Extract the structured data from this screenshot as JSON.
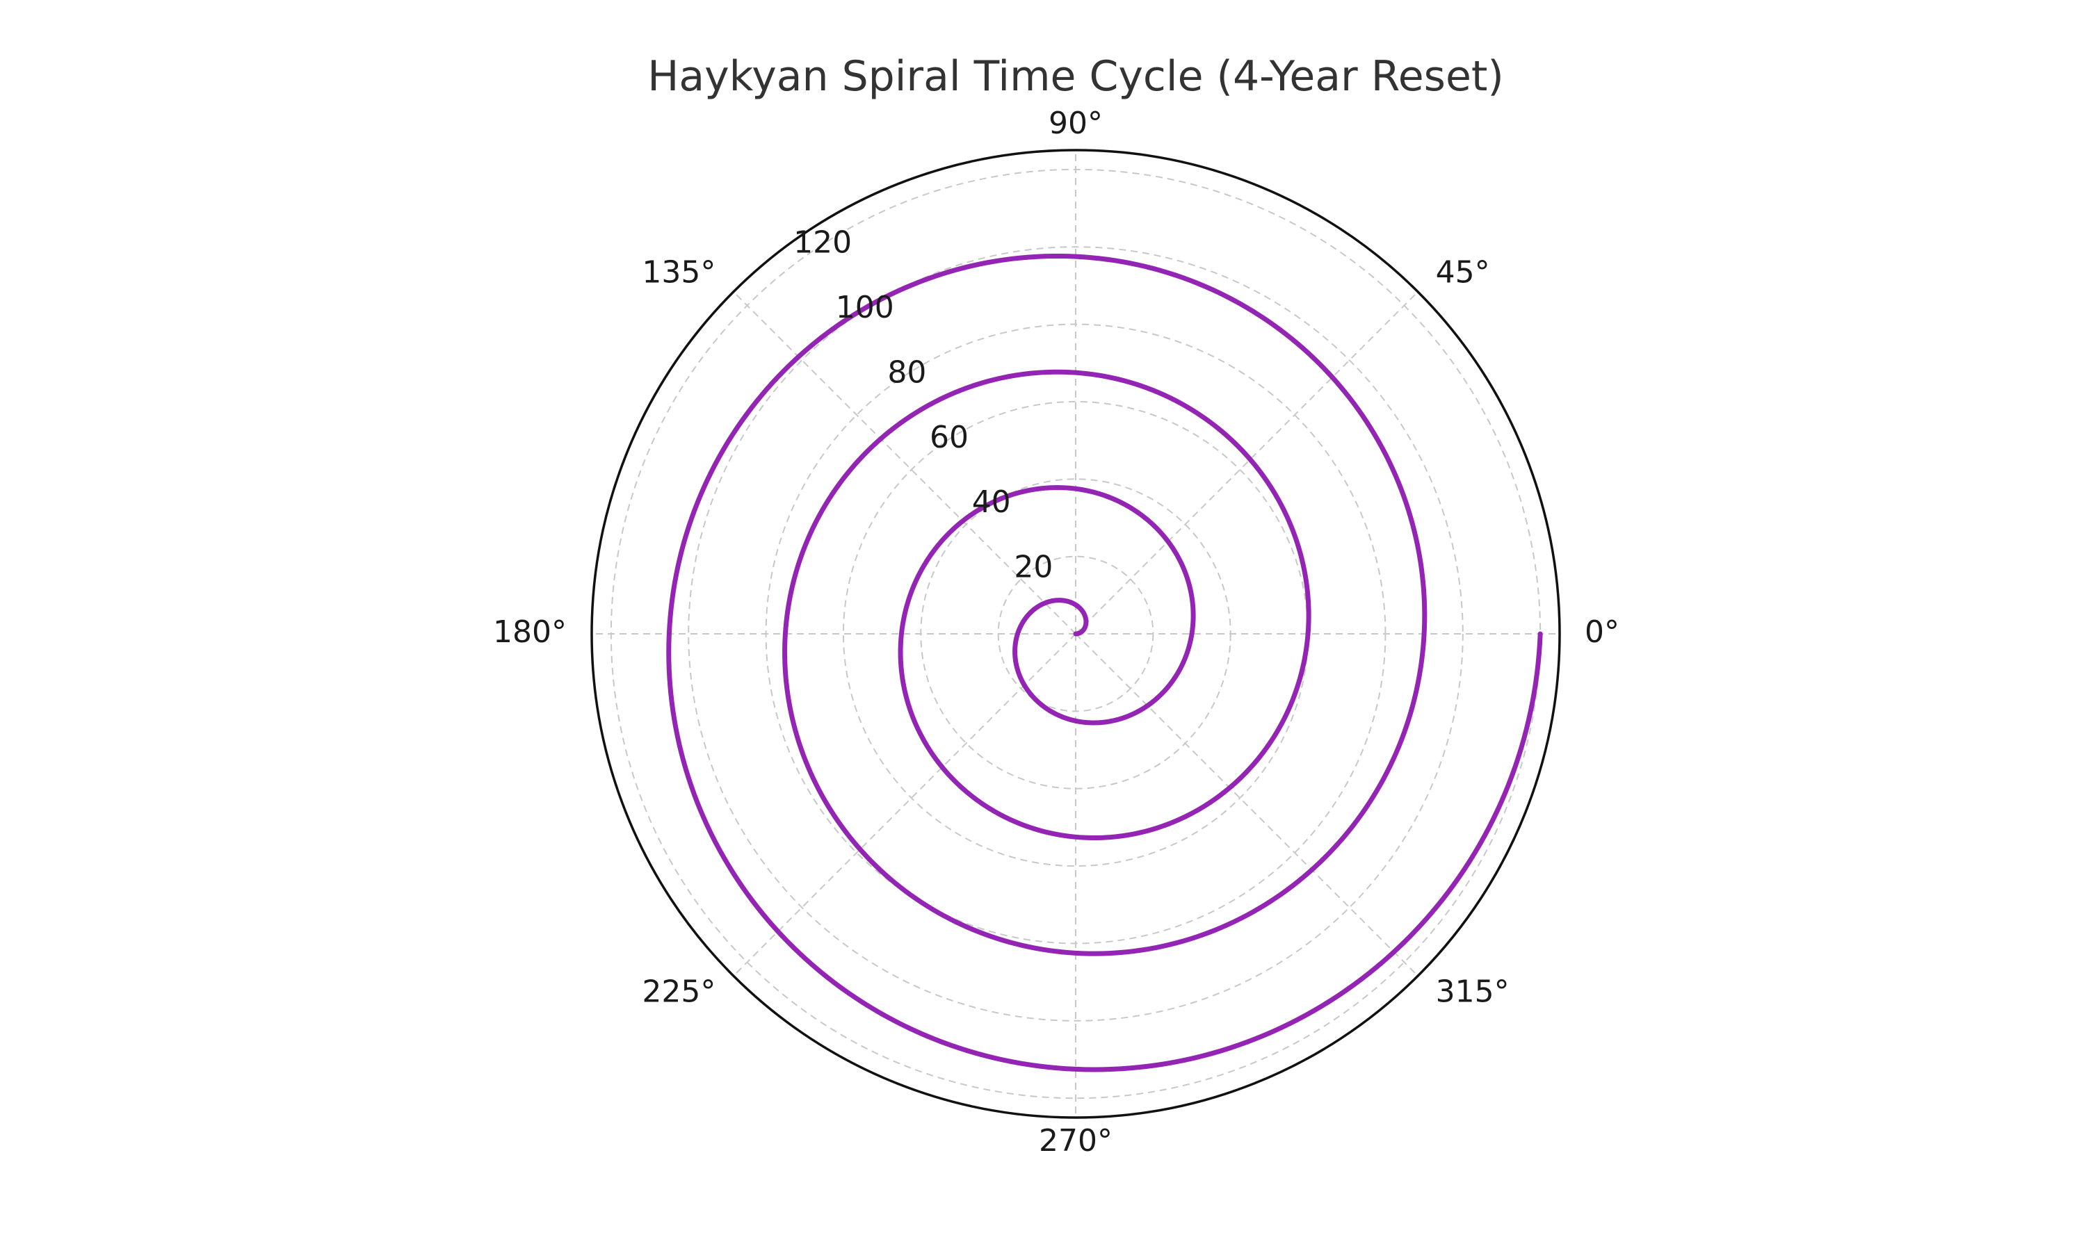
{
  "chart_data": {
    "type": "line",
    "projection": "polar",
    "title": "Haykyan Spiral Time Cycle (4-Year Reset)",
    "theta_ticks_deg": [
      0,
      45,
      90,
      135,
      180,
      225,
      270,
      315
    ],
    "theta_tick_labels": [
      "0°",
      "45°",
      "90°",
      "135°",
      "180°",
      "225°",
      "270°",
      "315°"
    ],
    "r_ticks": [
      20,
      40,
      60,
      80,
      100,
      120
    ],
    "r_tick_labels": [
      "20",
      "40",
      "60",
      "80",
      "100",
      "120"
    ],
    "rlim": [
      0,
      125
    ],
    "r_label_angle_deg": 123,
    "grid": true,
    "series": [
      {
        "color": "#9425b4",
        "theta_start_deg": 0,
        "theta_end_deg": 1440,
        "r_start": 0,
        "r_end": 120,
        "shape": "archimedean spiral, r proportional to theta"
      }
    ]
  }
}
